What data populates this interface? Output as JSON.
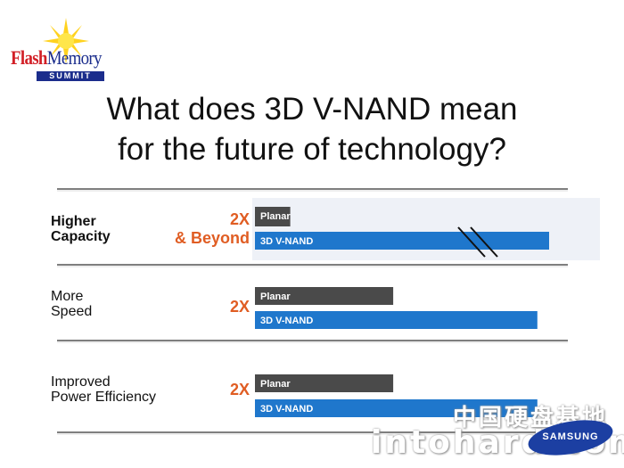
{
  "logo": {
    "word1": "Flash",
    "word2": "Memory",
    "summit": "SUMMIT"
  },
  "title": {
    "line1": "What does 3D V-NAND mean",
    "line2": "for the future of technology?"
  },
  "rows": [
    {
      "label_line1": "Higher",
      "label_line2": "Capacity",
      "factor_line1": "2X",
      "factor_line2": "& Beyond"
    },
    {
      "label_line1": "More",
      "label_line2": "Speed",
      "factor_line1": "2X",
      "factor_line2": ""
    },
    {
      "label_line1": "Improved",
      "label_line2": "Power Efficiency",
      "factor_line1": "2X",
      "factor_line2": ""
    }
  ],
  "chart_data": {
    "type": "bar",
    "orientation": "horizontal",
    "categories": [
      "Higher Capacity",
      "More Speed",
      "Improved Power Efficiency"
    ],
    "series": [
      {
        "name": "Planar",
        "values": [
          0.12,
          0.47,
          0.47
        ]
      },
      {
        "name": "3D V-NAND",
        "values": [
          1.0,
          0.96,
          0.96
        ]
      }
    ],
    "colors": {
      "Planar": "#4a4a4a",
      "3D V-NAND": "#1f77cc"
    },
    "axis_break": "3D V-NAND bar in Higher Capacity row",
    "grid": false
  },
  "colors": {
    "accent": "#e05d23",
    "planar": "#4a4a4a",
    "vnand": "#1f77cc"
  },
  "watermark": {
    "text": "intohard.com",
    "text_cn": "中国硬盘基地"
  },
  "brand": {
    "samsung": "SAMSUNG"
  }
}
